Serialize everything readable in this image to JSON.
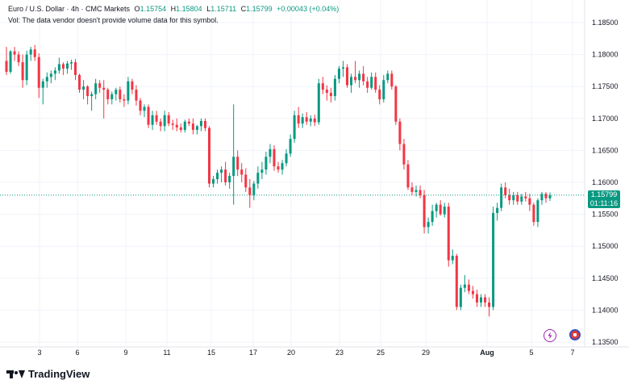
{
  "legend": {
    "symbol": "Euro / U.S. Dollar · 4h · CMC Markets",
    "open_label": "O",
    "open": "1.15754",
    "high_label": "H",
    "high": "1.15804",
    "low_label": "L",
    "low": "1.15711",
    "close_label": "C",
    "close": "1.15799",
    "change": "+0.00043 (+0.04%)",
    "volume_note": "Vol: The data vendor doesn't provide volume data for this symbol."
  },
  "price_tag": {
    "price": "1.15799",
    "countdown": "01:11:16"
  },
  "brand": "TradingView",
  "colors": {
    "up": "#089981",
    "down": "#f23645",
    "grid": "#f0f3fa",
    "text": "#131722"
  },
  "chart_data": {
    "type": "candlestick",
    "title": "Euro / U.S. Dollar · 4h · CMC Markets",
    "ylim": [
      1.134,
      1.188
    ],
    "y_ticks": [
      "1.18500",
      "1.18000",
      "1.17500",
      "1.17000",
      "1.16500",
      "1.16000",
      "1.15500",
      "1.15000",
      "1.14500",
      "1.14000",
      "1.13500"
    ],
    "x_ticks": [
      "3",
      "6",
      "9",
      "11",
      "15",
      "17",
      "20",
      "23",
      "25",
      "29",
      "Aug",
      "5",
      "7"
    ],
    "last_price": 1.15799,
    "candles": [
      {
        "o": 1.179,
        "h": 1.1812,
        "l": 1.1768,
        "c": 1.1773
      },
      {
        "o": 1.1773,
        "h": 1.1807,
        "l": 1.177,
        "c": 1.1805
      },
      {
        "o": 1.1805,
        "h": 1.1812,
        "l": 1.179,
        "c": 1.18
      },
      {
        "o": 1.18,
        "h": 1.1805,
        "l": 1.1782,
        "c": 1.1788
      },
      {
        "o": 1.1788,
        "h": 1.18,
        "l": 1.1748,
        "c": 1.176
      },
      {
        "o": 1.176,
        "h": 1.1806,
        "l": 1.1752,
        "c": 1.18
      },
      {
        "o": 1.18,
        "h": 1.1812,
        "l": 1.179,
        "c": 1.1808
      },
      {
        "o": 1.1808,
        "h": 1.1815,
        "l": 1.179,
        "c": 1.1796
      },
      {
        "o": 1.1796,
        "h": 1.1802,
        "l": 1.1732,
        "c": 1.1748
      },
      {
        "o": 1.1748,
        "h": 1.1762,
        "l": 1.1722,
        "c": 1.1758
      },
      {
        "o": 1.1758,
        "h": 1.1772,
        "l": 1.1748,
        "c": 1.1765
      },
      {
        "o": 1.1765,
        "h": 1.1775,
        "l": 1.1755,
        "c": 1.177
      },
      {
        "o": 1.177,
        "h": 1.178,
        "l": 1.176,
        "c": 1.1775
      },
      {
        "o": 1.1775,
        "h": 1.1795,
        "l": 1.177,
        "c": 1.1785
      },
      {
        "o": 1.1785,
        "h": 1.1788,
        "l": 1.1768,
        "c": 1.1778
      },
      {
        "o": 1.1778,
        "h": 1.179,
        "l": 1.177,
        "c": 1.1786
      },
      {
        "o": 1.1786,
        "h": 1.1792,
        "l": 1.1776,
        "c": 1.1788
      },
      {
        "o": 1.1788,
        "h": 1.1793,
        "l": 1.176,
        "c": 1.1768
      },
      {
        "o": 1.1768,
        "h": 1.177,
        "l": 1.174,
        "c": 1.1745
      },
      {
        "o": 1.1745,
        "h": 1.176,
        "l": 1.173,
        "c": 1.175
      },
      {
        "o": 1.175,
        "h": 1.1752,
        "l": 1.1722,
        "c": 1.1735
      },
      {
        "o": 1.1735,
        "h": 1.1742,
        "l": 1.1712,
        "c": 1.1738
      },
      {
        "o": 1.1738,
        "h": 1.1762,
        "l": 1.173,
        "c": 1.1755
      },
      {
        "o": 1.1755,
        "h": 1.176,
        "l": 1.174,
        "c": 1.1748
      },
      {
        "o": 1.1748,
        "h": 1.176,
        "l": 1.17,
        "c": 1.1745
      },
      {
        "o": 1.1745,
        "h": 1.1748,
        "l": 1.1722,
        "c": 1.173
      },
      {
        "o": 1.173,
        "h": 1.1742,
        "l": 1.1722,
        "c": 1.1738
      },
      {
        "o": 1.1738,
        "h": 1.1748,
        "l": 1.1728,
        "c": 1.1745
      },
      {
        "o": 1.1745,
        "h": 1.175,
        "l": 1.1725,
        "c": 1.173
      },
      {
        "o": 1.173,
        "h": 1.1738,
        "l": 1.1718,
        "c": 1.1728
      },
      {
        "o": 1.1728,
        "h": 1.1765,
        "l": 1.1722,
        "c": 1.1758
      },
      {
        "o": 1.1758,
        "h": 1.1762,
        "l": 1.1738,
        "c": 1.1745
      },
      {
        "o": 1.1745,
        "h": 1.1752,
        "l": 1.172,
        "c": 1.1728
      },
      {
        "o": 1.1728,
        "h": 1.1732,
        "l": 1.1705,
        "c": 1.1712
      },
      {
        "o": 1.1712,
        "h": 1.1722,
        "l": 1.1702,
        "c": 1.1718
      },
      {
        "o": 1.1718,
        "h": 1.1722,
        "l": 1.1685,
        "c": 1.169
      },
      {
        "o": 1.169,
        "h": 1.1712,
        "l": 1.1682,
        "c": 1.1705
      },
      {
        "o": 1.1705,
        "h": 1.1712,
        "l": 1.169,
        "c": 1.1695
      },
      {
        "o": 1.1695,
        "h": 1.17,
        "l": 1.168,
        "c": 1.1688
      },
      {
        "o": 1.1688,
        "h": 1.1712,
        "l": 1.168,
        "c": 1.1705
      },
      {
        "o": 1.1705,
        "h": 1.171,
        "l": 1.1688,
        "c": 1.1692
      },
      {
        "o": 1.1692,
        "h": 1.1698,
        "l": 1.1682,
        "c": 1.169
      },
      {
        "o": 1.169,
        "h": 1.17,
        "l": 1.168,
        "c": 1.1686
      },
      {
        "o": 1.1686,
        "h": 1.1692,
        "l": 1.1678,
        "c": 1.1682
      },
      {
        "o": 1.1682,
        "h": 1.1698,
        "l": 1.1678,
        "c": 1.1695
      },
      {
        "o": 1.1695,
        "h": 1.17,
        "l": 1.1688,
        "c": 1.1692
      },
      {
        "o": 1.1692,
        "h": 1.17,
        "l": 1.1675,
        "c": 1.1682
      },
      {
        "o": 1.1682,
        "h": 1.169,
        "l": 1.1675,
        "c": 1.1688
      },
      {
        "o": 1.1688,
        "h": 1.17,
        "l": 1.168,
        "c": 1.1696
      },
      {
        "o": 1.1696,
        "h": 1.17,
        "l": 1.168,
        "c": 1.1685
      },
      {
        "o": 1.1685,
        "h": 1.1688,
        "l": 1.1592,
        "c": 1.1598
      },
      {
        "o": 1.1598,
        "h": 1.161,
        "l": 1.1592,
        "c": 1.1605
      },
      {
        "o": 1.1605,
        "h": 1.162,
        "l": 1.1598,
        "c": 1.1615
      },
      {
        "o": 1.1615,
        "h": 1.1625,
        "l": 1.16,
        "c": 1.162
      },
      {
        "o": 1.162,
        "h": 1.1632,
        "l": 1.1595,
        "c": 1.16
      },
      {
        "o": 1.16,
        "h": 1.1615,
        "l": 1.159,
        "c": 1.161
      },
      {
        "o": 1.161,
        "h": 1.1722,
        "l": 1.1565,
        "c": 1.164
      },
      {
        "o": 1.164,
        "h": 1.165,
        "l": 1.161,
        "c": 1.162
      },
      {
        "o": 1.162,
        "h": 1.163,
        "l": 1.16,
        "c": 1.1612
      },
      {
        "o": 1.1612,
        "h": 1.1622,
        "l": 1.1585,
        "c": 1.1592
      },
      {
        "o": 1.1592,
        "h": 1.1605,
        "l": 1.156,
        "c": 1.158
      },
      {
        "o": 1.158,
        "h": 1.1602,
        "l": 1.1572,
        "c": 1.1598
      },
      {
        "o": 1.1598,
        "h": 1.1625,
        "l": 1.159,
        "c": 1.1615
      },
      {
        "o": 1.1615,
        "h": 1.1632,
        "l": 1.1605,
        "c": 1.162
      },
      {
        "o": 1.162,
        "h": 1.1648,
        "l": 1.1612,
        "c": 1.164
      },
      {
        "o": 1.164,
        "h": 1.166,
        "l": 1.163,
        "c": 1.1652
      },
      {
        "o": 1.1652,
        "h": 1.1658,
        "l": 1.1618,
        "c": 1.1625
      },
      {
        "o": 1.1625,
        "h": 1.1632,
        "l": 1.1615,
        "c": 1.162
      },
      {
        "o": 1.162,
        "h": 1.1635,
        "l": 1.1612,
        "c": 1.163
      },
      {
        "o": 1.163,
        "h": 1.1652,
        "l": 1.1625,
        "c": 1.1645
      },
      {
        "o": 1.1645,
        "h": 1.1675,
        "l": 1.164,
        "c": 1.1668
      },
      {
        "o": 1.1668,
        "h": 1.1712,
        "l": 1.1662,
        "c": 1.1705
      },
      {
        "o": 1.1705,
        "h": 1.1718,
        "l": 1.1685,
        "c": 1.1692
      },
      {
        "o": 1.1692,
        "h": 1.1708,
        "l": 1.1685,
        "c": 1.1702
      },
      {
        "o": 1.1702,
        "h": 1.171,
        "l": 1.169,
        "c": 1.1695
      },
      {
        "o": 1.1695,
        "h": 1.1705,
        "l": 1.1688,
        "c": 1.17
      },
      {
        "o": 1.17,
        "h": 1.1706,
        "l": 1.1688,
        "c": 1.1694
      },
      {
        "o": 1.1694,
        "h": 1.1762,
        "l": 1.169,
        "c": 1.1755
      },
      {
        "o": 1.1755,
        "h": 1.1765,
        "l": 1.1738,
        "c": 1.1745
      },
      {
        "o": 1.1745,
        "h": 1.1752,
        "l": 1.1728,
        "c": 1.174
      },
      {
        "o": 1.174,
        "h": 1.1748,
        "l": 1.1725,
        "c": 1.1735
      },
      {
        "o": 1.1735,
        "h": 1.1768,
        "l": 1.1728,
        "c": 1.1762
      },
      {
        "o": 1.1762,
        "h": 1.1782,
        "l": 1.1755,
        "c": 1.1778
      },
      {
        "o": 1.1778,
        "h": 1.179,
        "l": 1.1765,
        "c": 1.178
      },
      {
        "o": 1.178,
        "h": 1.1785,
        "l": 1.1748,
        "c": 1.1752
      },
      {
        "o": 1.1752,
        "h": 1.177,
        "l": 1.174,
        "c": 1.1765
      },
      {
        "o": 1.1765,
        "h": 1.179,
        "l": 1.1755,
        "c": 1.176
      },
      {
        "o": 1.176,
        "h": 1.1775,
        "l": 1.1748,
        "c": 1.177
      },
      {
        "o": 1.177,
        "h": 1.1782,
        "l": 1.1752,
        "c": 1.1758
      },
      {
        "o": 1.1758,
        "h": 1.1765,
        "l": 1.174,
        "c": 1.1748
      },
      {
        "o": 1.1748,
        "h": 1.1772,
        "l": 1.1745,
        "c": 1.1765
      },
      {
        "o": 1.1765,
        "h": 1.1772,
        "l": 1.174,
        "c": 1.1745
      },
      {
        "o": 1.1745,
        "h": 1.1752,
        "l": 1.1722,
        "c": 1.173
      },
      {
        "o": 1.173,
        "h": 1.1768,
        "l": 1.1725,
        "c": 1.176
      },
      {
        "o": 1.176,
        "h": 1.1775,
        "l": 1.1755,
        "c": 1.177
      },
      {
        "o": 1.177,
        "h": 1.1775,
        "l": 1.1745,
        "c": 1.175
      },
      {
        "o": 1.175,
        "h": 1.1752,
        "l": 1.169,
        "c": 1.1695
      },
      {
        "o": 1.1695,
        "h": 1.17,
        "l": 1.165,
        "c": 1.166
      },
      {
        "o": 1.166,
        "h": 1.1668,
        "l": 1.162,
        "c": 1.1628
      },
      {
        "o": 1.1628,
        "h": 1.1635,
        "l": 1.1588,
        "c": 1.1592
      },
      {
        "o": 1.1592,
        "h": 1.16,
        "l": 1.158,
        "c": 1.1585
      },
      {
        "o": 1.1585,
        "h": 1.1595,
        "l": 1.1578,
        "c": 1.1588
      },
      {
        "o": 1.1588,
        "h": 1.1595,
        "l": 1.1575,
        "c": 1.158
      },
      {
        "o": 1.158,
        "h": 1.1588,
        "l": 1.152,
        "c": 1.153
      },
      {
        "o": 1.153,
        "h": 1.1545,
        "l": 1.152,
        "c": 1.1538
      },
      {
        "o": 1.1538,
        "h": 1.1565,
        "l": 1.1532,
        "c": 1.1555
      },
      {
        "o": 1.1555,
        "h": 1.1568,
        "l": 1.1545,
        "c": 1.1565
      },
      {
        "o": 1.1565,
        "h": 1.1572,
        "l": 1.1548,
        "c": 1.155
      },
      {
        "o": 1.155,
        "h": 1.1568,
        "l": 1.1545,
        "c": 1.1562
      },
      {
        "o": 1.1562,
        "h": 1.1568,
        "l": 1.1468,
        "c": 1.1478
      },
      {
        "o": 1.1478,
        "h": 1.1495,
        "l": 1.1472,
        "c": 1.1485
      },
      {
        "o": 1.1485,
        "h": 1.1488,
        "l": 1.14,
        "c": 1.1405
      },
      {
        "o": 1.1405,
        "h": 1.144,
        "l": 1.14,
        "c": 1.1435
      },
      {
        "o": 1.1435,
        "h": 1.1455,
        "l": 1.1428,
        "c": 1.144
      },
      {
        "o": 1.144,
        "h": 1.1448,
        "l": 1.1425,
        "c": 1.143
      },
      {
        "o": 1.143,
        "h": 1.1438,
        "l": 1.1418,
        "c": 1.1425
      },
      {
        "o": 1.1425,
        "h": 1.1432,
        "l": 1.1405,
        "c": 1.1412
      },
      {
        "o": 1.1412,
        "h": 1.1425,
        "l": 1.1405,
        "c": 1.142
      },
      {
        "o": 1.142,
        "h": 1.1425,
        "l": 1.1405,
        "c": 1.1412
      },
      {
        "o": 1.1412,
        "h": 1.142,
        "l": 1.139,
        "c": 1.1405
      },
      {
        "o": 1.1405,
        "h": 1.1562,
        "l": 1.14,
        "c": 1.1552
      },
      {
        "o": 1.1552,
        "h": 1.1568,
        "l": 1.154,
        "c": 1.156
      },
      {
        "o": 1.156,
        "h": 1.1598,
        "l": 1.1555,
        "c": 1.1592
      },
      {
        "o": 1.1592,
        "h": 1.16,
        "l": 1.1575,
        "c": 1.158
      },
      {
        "o": 1.158,
        "h": 1.159,
        "l": 1.1565,
        "c": 1.1572
      },
      {
        "o": 1.1572,
        "h": 1.1585,
        "l": 1.1565,
        "c": 1.158
      },
      {
        "o": 1.158,
        "h": 1.1585,
        "l": 1.1565,
        "c": 1.157
      },
      {
        "o": 1.157,
        "h": 1.1582,
        "l": 1.1565,
        "c": 1.1578
      },
      {
        "o": 1.1578,
        "h": 1.1585,
        "l": 1.157,
        "c": 1.1575
      },
      {
        "o": 1.1575,
        "h": 1.1582,
        "l": 1.1555,
        "c": 1.1565
      },
      {
        "o": 1.1565,
        "h": 1.1568,
        "l": 1.1532,
        "c": 1.1538
      },
      {
        "o": 1.1538,
        "h": 1.1575,
        "l": 1.153,
        "c": 1.1572
      },
      {
        "o": 1.1572,
        "h": 1.1585,
        "l": 1.1565,
        "c": 1.1582
      },
      {
        "o": 1.1582,
        "h": 1.1585,
        "l": 1.1568,
        "c": 1.1575
      },
      {
        "o": 1.1575,
        "h": 1.1584,
        "l": 1.1571,
        "c": 1.158
      }
    ]
  }
}
